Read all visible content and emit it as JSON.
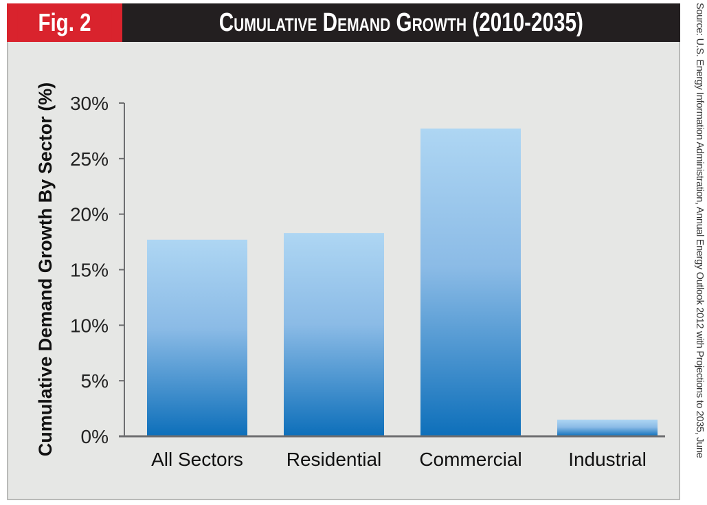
{
  "header": {
    "figure_tag": "Fig. 2",
    "title": "Cumulative Demand Growth (2010-2035)"
  },
  "source_note": "Source: U.S. Energy Information Administration, Annual Energy Outlook 2012 with Projections to 2035, June",
  "colors": {
    "tag_red": "#d9232d",
    "title_black": "#231f20",
    "panel_bg": "#e6e7e5",
    "bar_top": "#aed6f3",
    "bar_bottom": "#0d6fba",
    "axis": "#6d6e70"
  },
  "chart_data": {
    "type": "bar",
    "title": "Cumulative Demand Growth (2010-2035)",
    "xlabel": "",
    "ylabel": "Cumulative Demand Growth By Sector (%)",
    "categories": [
      "All Sectors",
      "Residential",
      "Commercial",
      "Industrial"
    ],
    "values": [
      17.7,
      18.3,
      27.7,
      1.5
    ],
    "unit": "%",
    "ylim": [
      0,
      30
    ],
    "yticks": [
      0,
      5,
      10,
      15,
      20,
      25,
      30
    ],
    "ytick_labels": [
      "0%",
      "5%",
      "10%",
      "15%",
      "20%",
      "25%",
      "30%"
    ],
    "grid": false,
    "legend": "none"
  }
}
